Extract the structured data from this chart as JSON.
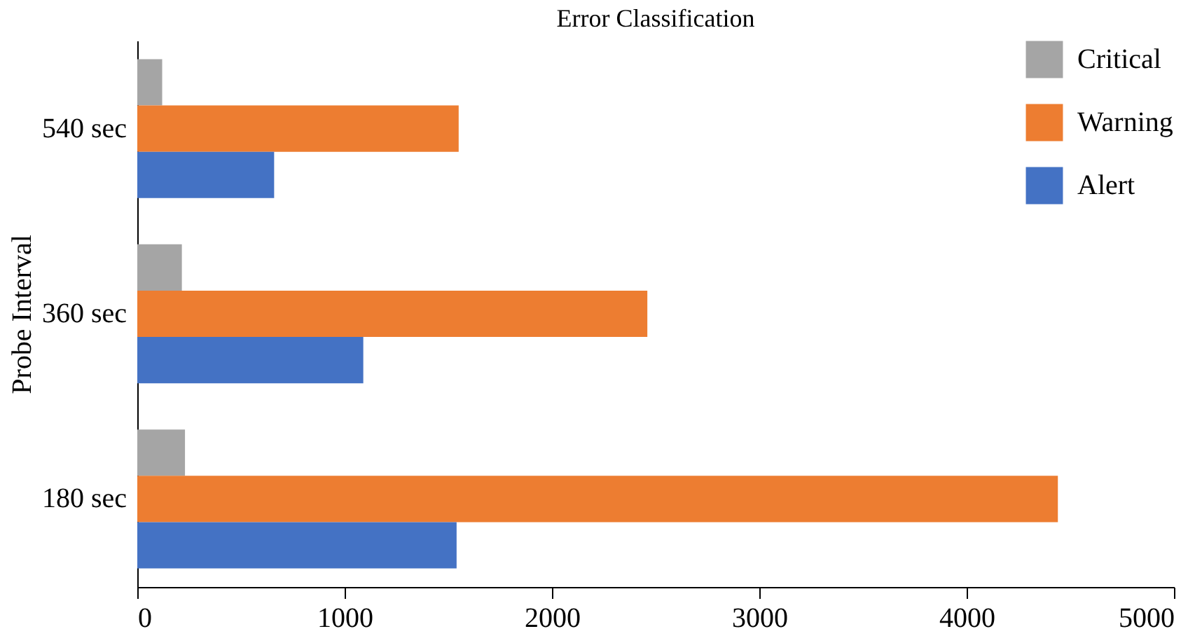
{
  "chart_data": {
    "type": "bar",
    "orientation": "horizontal",
    "title": "Error Classification",
    "ylabel": "Probe Interval",
    "categories": [
      "540 sec",
      "360 sec",
      "180 sec"
    ],
    "series": [
      {
        "name": "Critical",
        "color": "#a5a5a5",
        "values": [
          120,
          215,
          230
        ]
      },
      {
        "name": "Warning",
        "color": "#ed7d31",
        "values": [
          1550,
          2460,
          4440
        ]
      },
      {
        "name": "Alert",
        "color": "#4472c4",
        "values": [
          660,
          1090,
          1540
        ]
      }
    ],
    "xlim": [
      0,
      5000
    ],
    "xticks": [
      0,
      1000,
      2000,
      3000,
      4000,
      5000
    ],
    "legend": "top right",
    "grid": false
  }
}
